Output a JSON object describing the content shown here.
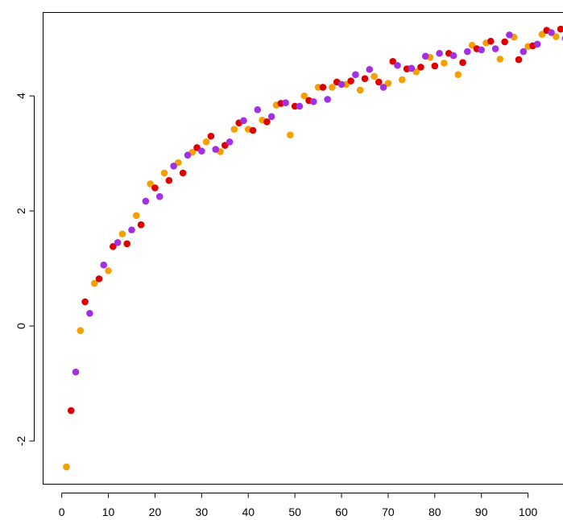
{
  "chart_data": {
    "type": "scatter",
    "title": "",
    "xlabel": "",
    "ylabel": "",
    "xlim": [
      -4,
      110
    ],
    "ylim": [
      -2.75,
      5.45
    ],
    "grid": false,
    "legend": "none",
    "x_ticks": [
      0,
      10,
      20,
      30,
      40,
      50,
      60,
      70,
      80,
      90,
      100
    ],
    "x_tick_labels": [
      "0",
      "10",
      "20",
      "30",
      "40",
      "50",
      "60",
      "70",
      "80",
      "90",
      "100"
    ],
    "y_ticks": [
      -2,
      0,
      2,
      4
    ],
    "y_tick_labels": [
      "-2",
      "0",
      "2",
      "4"
    ],
    "colors": [
      "#f5a000",
      "#dd0000",
      "#a030e0"
    ],
    "series": [
      {
        "color": "#f5a000",
        "x": [
          1,
          4,
          7,
          10,
          13,
          16,
          19,
          22,
          25,
          28,
          31,
          34,
          37,
          40,
          43,
          46,
          49,
          52,
          55,
          58,
          61,
          64,
          67,
          70,
          73,
          76,
          79,
          82,
          85,
          88,
          91,
          94,
          97,
          100,
          103,
          106
        ],
        "y": [
          -2.45,
          -0.08,
          0.74,
          0.96,
          1.6,
          1.92,
          2.47,
          2.66,
          2.84,
          3.02,
          3.2,
          3.03,
          3.42,
          3.42,
          3.58,
          3.84,
          3.32,
          4.0,
          4.15,
          4.15,
          4.2,
          4.1,
          4.34,
          4.22,
          4.28,
          4.42,
          4.67,
          4.57,
          4.37,
          4.88,
          4.92,
          4.64,
          5.02,
          4.86,
          5.07,
          5.03
        ]
      },
      {
        "color": "#dd0000",
        "x": [
          2,
          5,
          8,
          11,
          14,
          17,
          20,
          23,
          26,
          29,
          32,
          35,
          38,
          41,
          44,
          47,
          50,
          53,
          56,
          59,
          62,
          65,
          68,
          71,
          74,
          77,
          80,
          83,
          86,
          89,
          92,
          95,
          98,
          101,
          104,
          107
        ],
        "y": [
          -1.47,
          0.42,
          0.82,
          1.38,
          1.43,
          1.76,
          2.4,
          2.53,
          2.66,
          3.1,
          3.3,
          3.14,
          3.53,
          3.4,
          3.55,
          3.87,
          3.82,
          3.92,
          4.15,
          4.24,
          4.26,
          4.3,
          4.24,
          4.6,
          4.47,
          4.5,
          4.52,
          4.74,
          4.58,
          4.82,
          4.95,
          4.94,
          4.63,
          4.87,
          5.14,
          5.16
        ]
      },
      {
        "color": "#a030e0",
        "x": [
          3,
          6,
          9,
          12,
          15,
          18,
          21,
          24,
          27,
          30,
          33,
          36,
          39,
          42,
          45,
          48,
          51,
          54,
          57,
          60,
          63,
          66,
          69,
          72,
          75,
          78,
          81,
          84,
          87,
          90,
          93,
          96,
          99,
          102,
          105,
          108
        ],
        "y": [
          -0.8,
          0.22,
          1.06,
          1.45,
          1.67,
          2.17,
          2.25,
          2.78,
          2.97,
          3.04,
          3.07,
          3.2,
          3.57,
          3.76,
          3.64,
          3.88,
          3.82,
          3.9,
          3.94,
          4.2,
          4.37,
          4.46,
          4.15,
          4.53,
          4.48,
          4.69,
          4.74,
          4.7,
          4.77,
          4.8,
          4.82,
          5.06,
          4.77,
          4.9,
          5.1,
          5.0
        ]
      }
    ]
  }
}
